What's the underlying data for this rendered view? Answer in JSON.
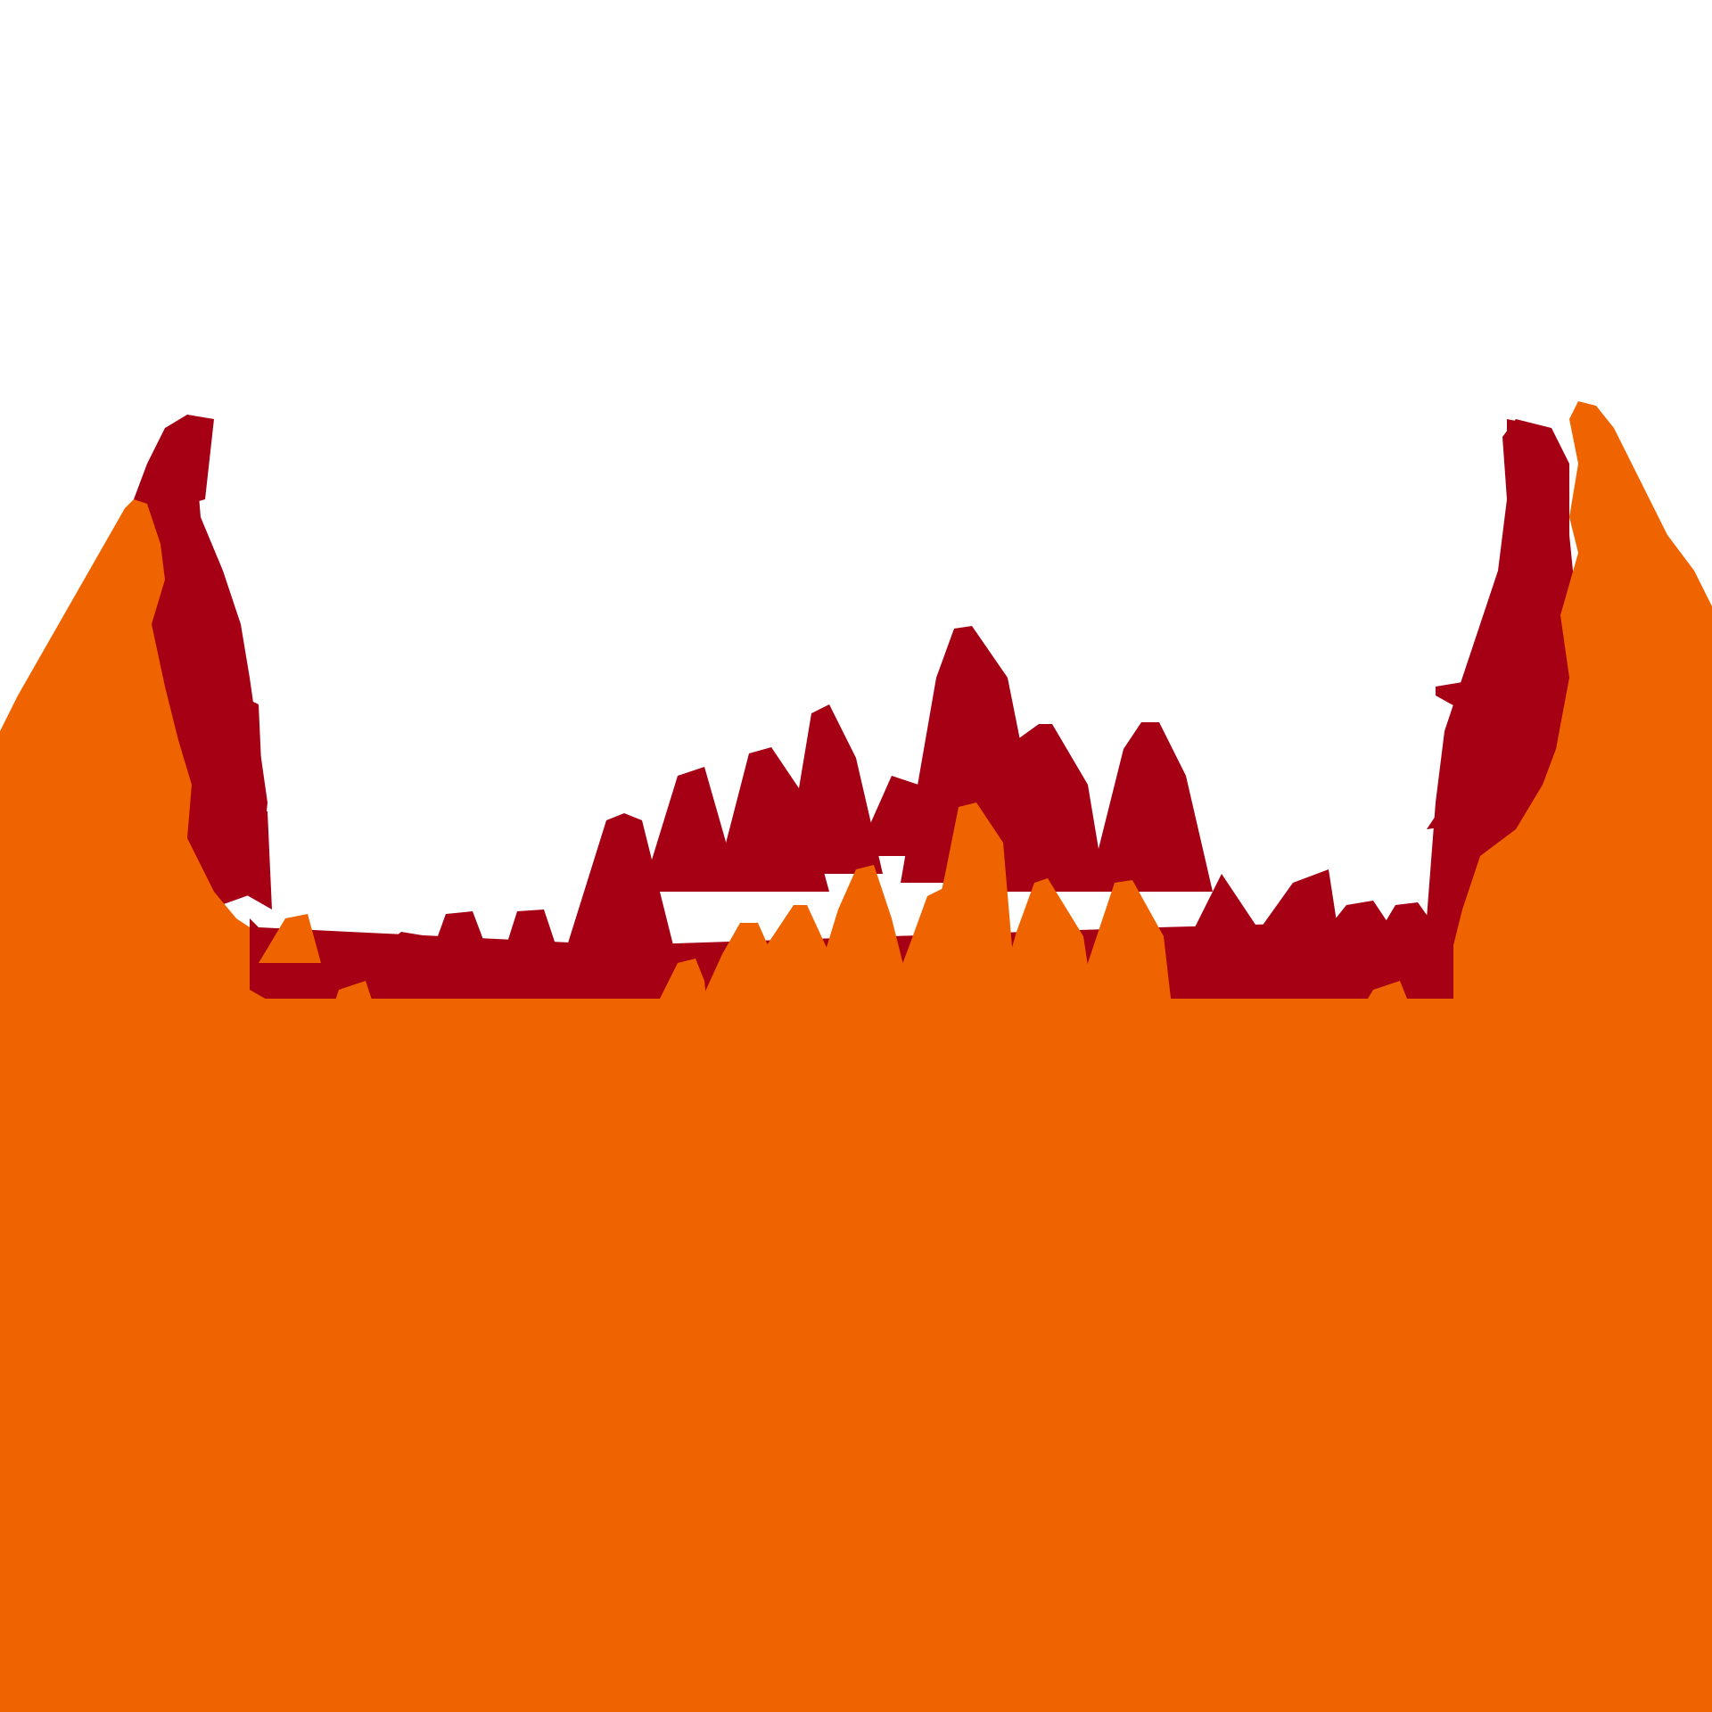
{
  "scene": {
    "background_color": "#ffffff",
    "back_forest_color": "#a60015",
    "front_forest_color": "#f06400",
    "ground_color": "#f06400"
  }
}
